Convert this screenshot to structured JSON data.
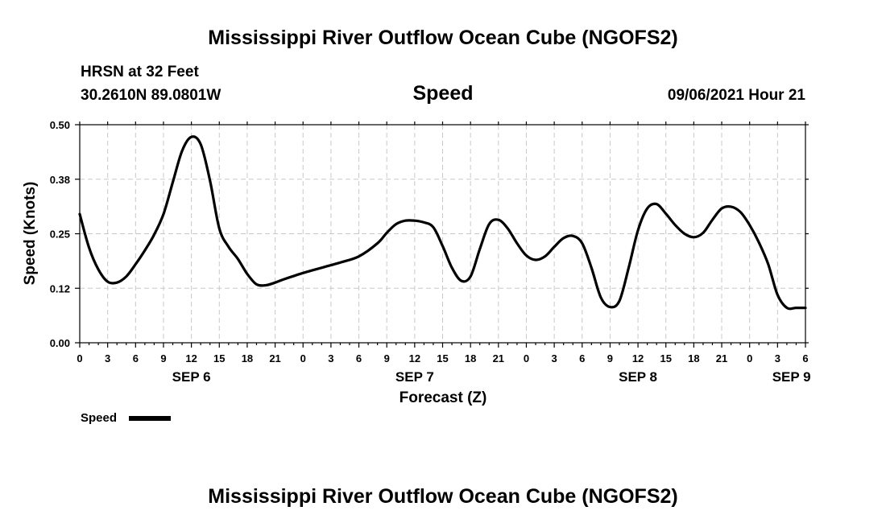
{
  "header": {
    "title_top": "Mississippi River Outflow Ocean Cube (NGOFS2)",
    "station": "HRSN at 32 Feet",
    "coords": "30.2610N  89.0801W",
    "variable": "Speed",
    "datetime": "09/06/2021 Hour 21"
  },
  "footer": {
    "title_bottom": "Mississippi River Outflow Ocean Cube (NGOFS2)"
  },
  "chart_data": {
    "type": "line",
    "title": "Speed",
    "xlabel": "Forecast (Z)",
    "ylabel": "Speed (Knots)",
    "xlim": [
      0,
      78
    ],
    "ylim": [
      0,
      0.5
    ],
    "y_ticks": [
      0.0,
      0.125,
      0.25,
      0.375,
      0.5
    ],
    "y_tick_labels": [
      "0.00",
      "0.12",
      "0.25",
      "0.38",
      "0.50"
    ],
    "x_ticks": [
      0,
      3,
      6,
      9,
      12,
      15,
      18,
      21,
      24,
      27,
      30,
      33,
      36,
      39,
      42,
      45,
      48,
      51,
      54,
      57,
      60,
      63,
      66,
      69,
      72,
      75,
      78
    ],
    "x_tick_labels": [
      "0",
      "3",
      "6",
      "9",
      "12",
      "15",
      "18",
      "21",
      "0",
      "3",
      "6",
      "9",
      "12",
      "15",
      "18",
      "21",
      "0",
      "3",
      "6",
      "9",
      "12",
      "15",
      "18",
      "21",
      "0",
      "3",
      "6"
    ],
    "day_labels": [
      {
        "label": "SEP 6",
        "x": 12
      },
      {
        "label": "SEP 7",
        "x": 36
      },
      {
        "label": "SEP 8",
        "x": 60
      },
      {
        "label": "SEP 9",
        "x": 76.5
      }
    ],
    "grid": true,
    "legend": {
      "label": "Speed",
      "position": "bottom-left"
    },
    "series": [
      {
        "name": "Speed",
        "x": [
          0,
          1,
          2,
          3,
          4,
          5,
          6,
          7,
          8,
          9,
          10,
          11,
          12,
          13,
          14,
          15,
          16,
          17,
          18,
          19,
          20,
          21,
          22,
          24,
          26,
          28,
          30,
          32,
          33,
          34,
          35,
          36,
          37,
          38,
          39,
          40,
          41,
          42,
          43,
          44,
          45,
          46,
          47,
          48,
          49,
          50,
          51,
          52,
          53,
          54,
          55,
          56,
          57,
          58,
          59,
          60,
          61,
          62,
          63,
          64,
          65,
          66,
          67,
          68,
          69,
          70,
          71,
          72,
          73,
          74,
          75,
          76,
          77,
          78
        ],
        "values": [
          0.295,
          0.218,
          0.168,
          0.14,
          0.138,
          0.152,
          0.18,
          0.212,
          0.248,
          0.295,
          0.368,
          0.44,
          0.472,
          0.455,
          0.372,
          0.262,
          0.22,
          0.192,
          0.158,
          0.134,
          0.132,
          0.138,
          0.146,
          0.16,
          0.172,
          0.184,
          0.198,
          0.228,
          0.252,
          0.272,
          0.28,
          0.28,
          0.276,
          0.265,
          0.222,
          0.172,
          0.142,
          0.152,
          0.215,
          0.272,
          0.282,
          0.262,
          0.228,
          0.2,
          0.19,
          0.198,
          0.22,
          0.24,
          0.245,
          0.228,
          0.172,
          0.104,
          0.082,
          0.096,
          0.172,
          0.258,
          0.308,
          0.318,
          0.296,
          0.27,
          0.25,
          0.242,
          0.252,
          0.282,
          0.308,
          0.312,
          0.3,
          0.27,
          0.23,
          0.18,
          0.11,
          0.08,
          0.08,
          0.08
        ]
      }
    ]
  }
}
